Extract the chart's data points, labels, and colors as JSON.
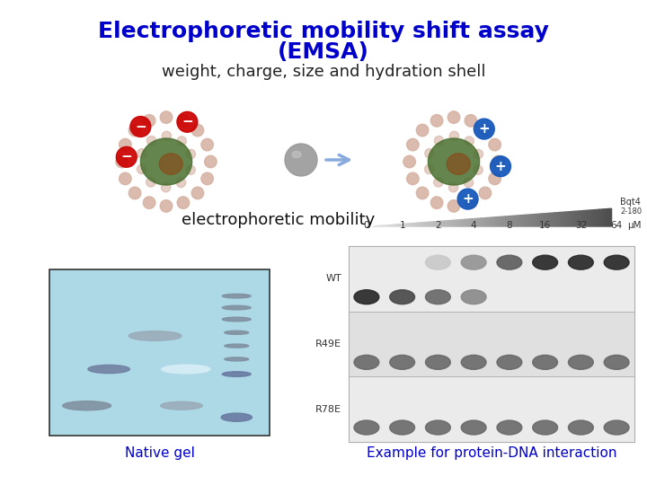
{
  "title_line1": "Electrophoretic mobility shift assay",
  "title_line2": "(EMSA)",
  "title_color": "#0000CC",
  "title_fontsize": 18,
  "bg_color": "#ffffff",
  "caption_left": "Native gel",
  "caption_right": "Example for protein-DNA interaction",
  "caption_color": "#0000CC",
  "caption_fontsize": 11,
  "subtitle_text": "weight, charge, size and hydration shell",
  "subtitle_fontsize": 13,
  "mobility_text": "electrophoretic mobility",
  "mobility_fontsize": 13,
  "gel_bg": "#add8e6",
  "gel_border": "#333333"
}
